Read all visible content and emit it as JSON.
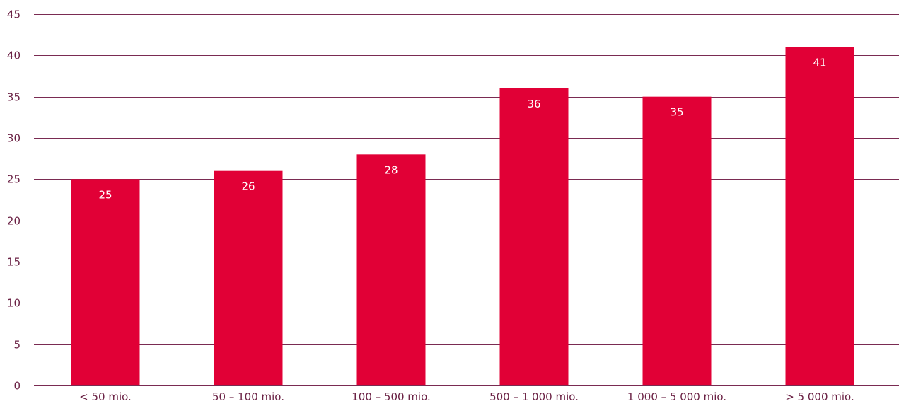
{
  "chart_data": {
    "type": "bar",
    "title": "",
    "xlabel": "",
    "ylabel": "",
    "categories": [
      "< 50 mio.",
      "50 – 100 mio.",
      "100 – 500 mio.",
      "500 – 1 000 mio.",
      "1 000 – 5 000 mio.",
      "> 5 000 mio."
    ],
    "values": [
      25,
      26,
      28,
      36,
      35,
      41
    ],
    "ylim": [
      0,
      45
    ],
    "yticks": [
      0,
      5,
      10,
      15,
      20,
      25,
      30,
      35,
      40,
      45
    ],
    "grid": true,
    "legend": "none",
    "colors": {
      "bar": "#e10036",
      "grid": "#7a2b52",
      "text": "#6b2245",
      "data_label": "#ffffff"
    }
  }
}
